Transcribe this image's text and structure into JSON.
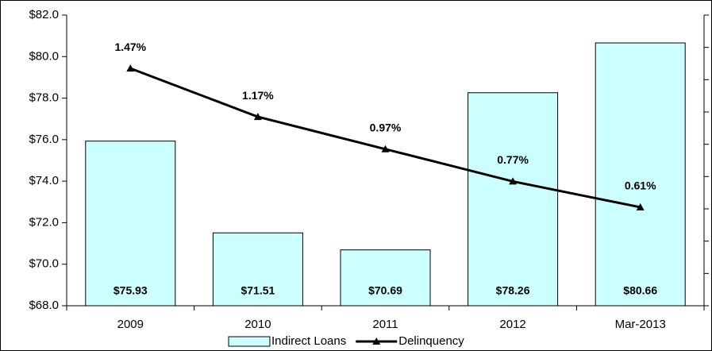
{
  "chart_data": {
    "type": "bar-line",
    "categories": [
      "2009",
      "2010",
      "2011",
      "2012",
      "Mar-2013"
    ],
    "series": [
      {
        "name": "Indirect Loans",
        "type": "bar",
        "color": "#ccffff",
        "values": [
          75.93,
          71.51,
          70.69,
          78.26,
          80.66
        ],
        "value_labels": [
          "$75.93",
          "$71.51",
          "$70.69",
          "$78.26",
          "$80.66"
        ]
      },
      {
        "name": "Delinquency",
        "type": "line",
        "axis": "y2",
        "color": "#000000",
        "values": [
          1.47,
          1.17,
          0.97,
          0.77,
          0.61
        ],
        "value_labels": [
          "1.47%",
          "1.17%",
          "0.97%",
          "0.77%",
          "0.61%"
        ]
      }
    ],
    "ylim": [
      68,
      82
    ],
    "yticks": [
      {
        "value": 68,
        "label": "$68.0"
      },
      {
        "value": 70,
        "label": "$70.0"
      },
      {
        "value": 72,
        "label": "$72.0"
      },
      {
        "value": 74,
        "label": "$74.0"
      },
      {
        "value": 76,
        "label": "$76.0"
      },
      {
        "value": 78,
        "label": "$78.0"
      },
      {
        "value": 80,
        "label": "$80.0"
      },
      {
        "value": 82,
        "label": "$82.0"
      }
    ],
    "y2lim": [
      0,
      1.8
    ],
    "y2ticks": [
      0,
      0.2,
      0.4,
      0.6,
      0.8,
      1,
      1.2,
      1.4,
      1.6,
      1.8
    ],
    "legend": "bottom"
  }
}
